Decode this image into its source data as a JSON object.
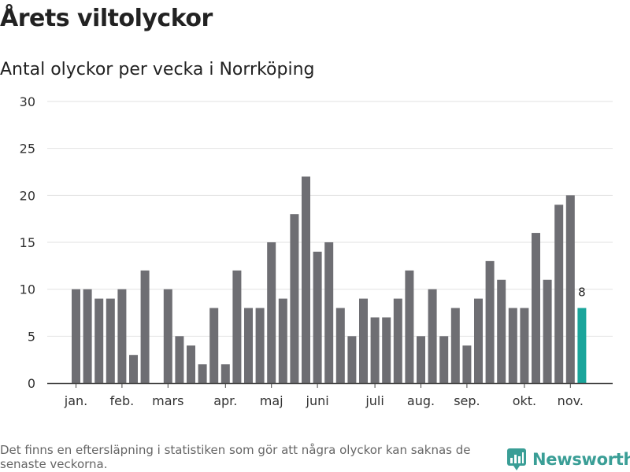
{
  "header": {
    "title": "Årets viltolyckor",
    "subtitle": "Antal olyckor per vecka i Norrköping"
  },
  "chart_data": {
    "type": "bar",
    "title": "Årets viltolyckor",
    "subtitle": "Antal olyckor per vecka i Norrköping",
    "xlabel": "",
    "ylabel": "",
    "ylim": [
      0,
      30
    ],
    "yticks": [
      "0",
      "5",
      "10",
      "15",
      "20",
      "25",
      "30"
    ],
    "grid": true,
    "month_labels": [
      {
        "label": "jan.",
        "week": 1
      },
      {
        "label": "feb.",
        "week": 5
      },
      {
        "label": "mars",
        "week": 9
      },
      {
        "label": "apr.",
        "week": 14
      },
      {
        "label": "maj",
        "week": 18
      },
      {
        "label": "juni",
        "week": 22
      },
      {
        "label": "juli",
        "week": 27
      },
      {
        "label": "aug.",
        "week": 31
      },
      {
        "label": "sep.",
        "week": 35
      },
      {
        "label": "okt.",
        "week": 40
      },
      {
        "label": "nov.",
        "week": 44
      }
    ],
    "weeks": [
      1,
      2,
      3,
      4,
      5,
      6,
      7,
      8,
      9,
      10,
      11,
      12,
      13,
      14,
      15,
      16,
      17,
      18,
      19,
      20,
      21,
      22,
      23,
      24,
      25,
      26,
      27,
      28,
      29,
      30,
      31,
      32,
      33,
      34,
      35,
      36,
      37,
      38,
      39,
      40,
      41,
      42,
      43,
      44,
      45
    ],
    "values": [
      10,
      10,
      9,
      9,
      10,
      3,
      12,
      0,
      10,
      5,
      4,
      2,
      8,
      2,
      12,
      8,
      8,
      15,
      9,
      18,
      22,
      14,
      15,
      8,
      5,
      9,
      7,
      7,
      9,
      12,
      5,
      10,
      5,
      8,
      4,
      9,
      13,
      11,
      8,
      8,
      16,
      11,
      19,
      20,
      8
    ],
    "highlight_index": 44,
    "highlight_label": "8",
    "bar_color": "#6e6e73",
    "highlight_color": "#1aa59b",
    "grid_color": "#e2e2e2",
    "axis_color": "#444444"
  },
  "footer": {
    "note": "Det finns en eftersläpning i statistiken som gör att några olyckor kan saknas de senaste veckorna.",
    "brand": "Newsworthy",
    "brand_icon": "newsworthy-logo-icon",
    "brand_color": "#3a9e96"
  }
}
